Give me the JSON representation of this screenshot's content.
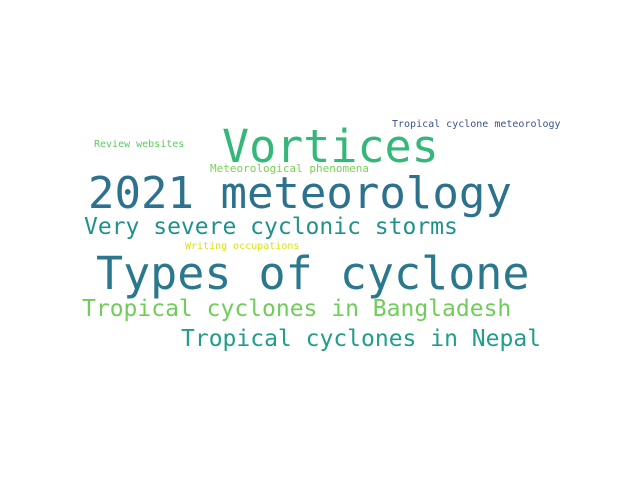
{
  "words": [
    {
      "id": "types",
      "text": "Types of cyclone",
      "color": "#2a788e"
    },
    {
      "id": "2021",
      "text": "2021 meteorology",
      "color": "#2c728e"
    },
    {
      "id": "vortices",
      "text": "Vortices",
      "color": "#35b779"
    },
    {
      "id": "vsevere",
      "text": "Very severe cyclonic storms",
      "color": "#21918c"
    },
    {
      "id": "bangla",
      "text": "Tropical cyclones in Bangladesh",
      "color": "#6ece58"
    },
    {
      "id": "nepal",
      "text": "Tropical cyclones in Nepal",
      "color": "#1f9e89"
    },
    {
      "id": "tcm",
      "text": "Tropical cyclone meteorology",
      "color": "#3b528b"
    },
    {
      "id": "review",
      "text": "Review websites",
      "color": "#5ec962"
    },
    {
      "id": "metphen",
      "text": "Meteorological phenomena",
      "color": "#7ad151"
    },
    {
      "id": "writing",
      "text": "Writing occupations",
      "color": "#d8e219"
    }
  ]
}
